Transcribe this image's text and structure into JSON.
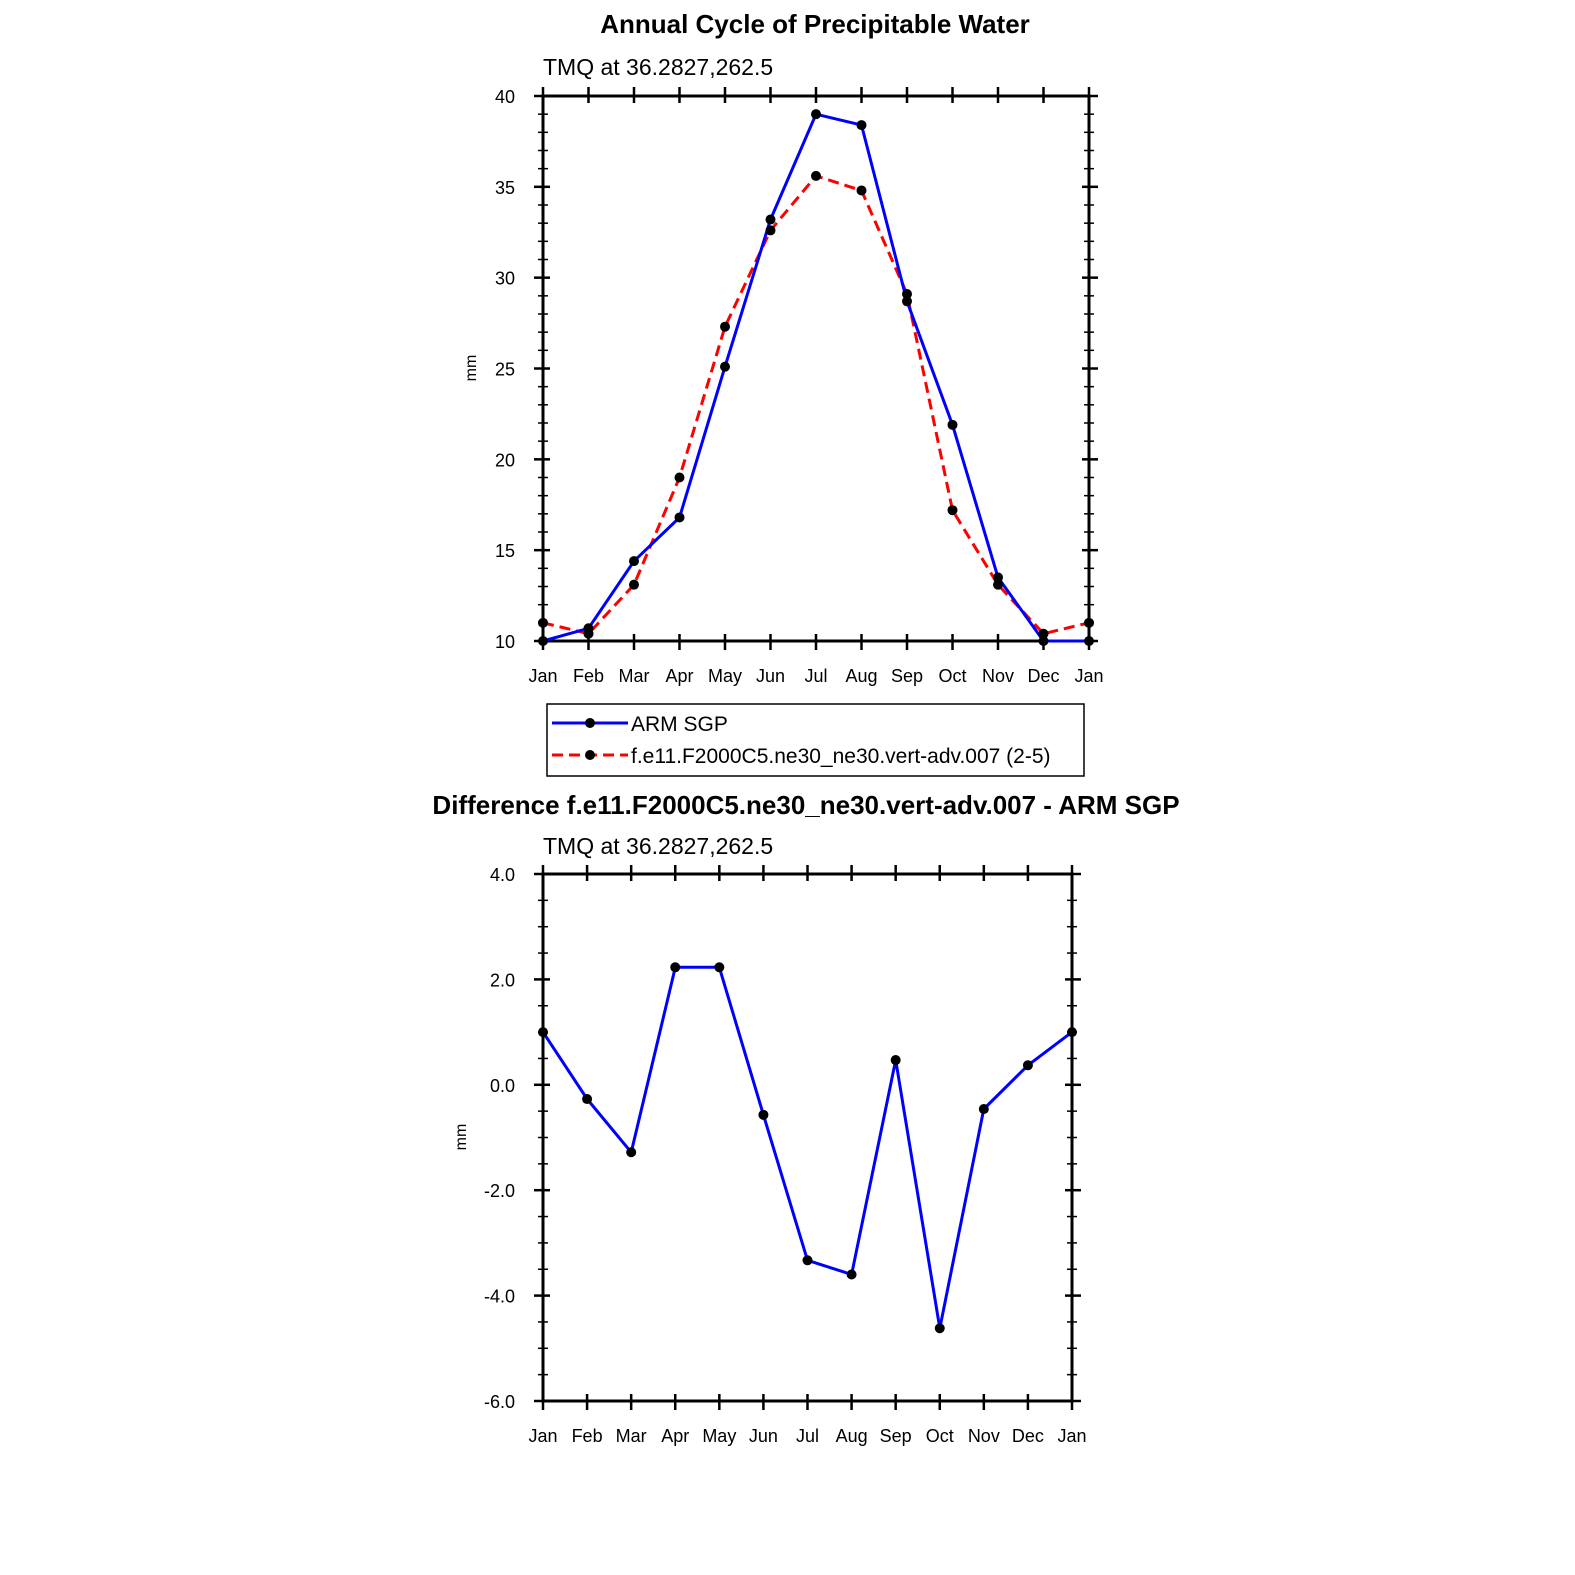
{
  "chart_data": [
    {
      "type": "line",
      "title": "Annual Cycle of Precipitable Water",
      "subtitle": "TMQ at 36.2827,262.5",
      "xlabel": "",
      "ylabel": "mm",
      "categories": [
        "Jan",
        "Feb",
        "Mar",
        "Apr",
        "May",
        "Jun",
        "Jul",
        "Aug",
        "Sep",
        "Oct",
        "Nov",
        "Dec",
        "Jan"
      ],
      "ylim": [
        10,
        40
      ],
      "yticks": [
        10,
        15,
        20,
        25,
        30,
        35,
        40
      ],
      "ytick_labels": [
        "10",
        "15",
        "20",
        "25",
        "30",
        "35",
        "40"
      ],
      "series": [
        {
          "name": "ARM SGP",
          "color": "#0000ff",
          "dash": "solid",
          "values": [
            10.0,
            10.7,
            14.4,
            16.8,
            25.1,
            33.2,
            39.0,
            38.4,
            28.7,
            21.9,
            13.5,
            10.0,
            10.0
          ]
        },
        {
          "name": "f.e11.F2000C5.ne30_ne30.vert-adv.007 (2-5)",
          "color": "#ff0000",
          "dash": "dashed",
          "values": [
            11.0,
            10.4,
            13.1,
            19.0,
            27.3,
            32.6,
            35.6,
            34.8,
            29.1,
            17.2,
            13.1,
            10.4,
            11.0
          ]
        }
      ],
      "legend": "bottom"
    },
    {
      "type": "line",
      "title": "Difference f.e11.F2000C5.ne30_ne30.vert-adv.007 - ARM SGP",
      "subtitle": "TMQ at 36.2827,262.5",
      "xlabel": "",
      "ylabel": "mm",
      "categories": [
        "Jan",
        "Feb",
        "Mar",
        "Apr",
        "May",
        "Jun",
        "Jul",
        "Aug",
        "Sep",
        "Oct",
        "Nov",
        "Dec",
        "Jan"
      ],
      "ylim": [
        -6,
        4
      ],
      "yticks": [
        -6,
        -4,
        -2,
        0,
        2,
        4
      ],
      "ytick_labels": [
        "-6.0",
        "-4.0",
        "-2.0",
        "0.0",
        "2.0",
        "4.0"
      ],
      "series": [
        {
          "name": "Difference",
          "color": "#0000ff",
          "dash": "solid",
          "values": [
            1.0,
            -0.27,
            -1.28,
            2.23,
            2.23,
            -0.57,
            -3.33,
            -3.6,
            0.47,
            -4.62,
            -0.46,
            0.37,
            1.0
          ]
        }
      ]
    }
  ]
}
